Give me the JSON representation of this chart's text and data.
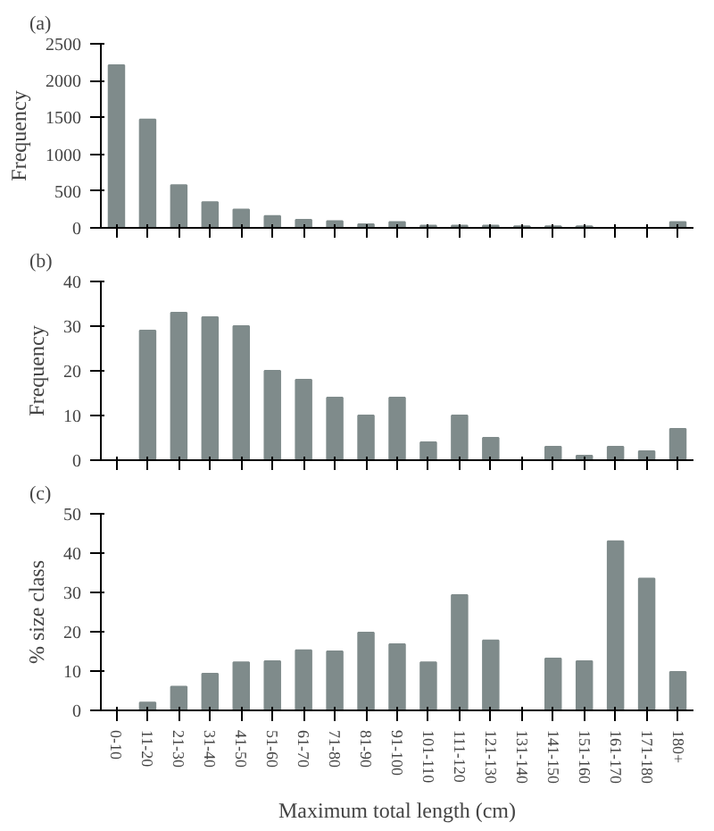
{
  "chart_data": [
    {
      "type": "bar",
      "title": "(a)",
      "ylabel": "Frequency",
      "categories": [
        null,
        null,
        null,
        null,
        null,
        null,
        null,
        null,
        null,
        null,
        null,
        null,
        null,
        null,
        null,
        null,
        null,
        null,
        null
      ],
      "values": [
        2210,
        1470,
        580,
        350,
        250,
        160,
        110,
        90,
        50,
        80,
        30,
        30,
        30,
        20,
        20,
        20,
        0,
        0,
        80
      ],
      "color": "#7f8b8b",
      "ylim": [
        0,
        2500
      ],
      "yticks": [
        0,
        500,
        1000,
        1500,
        2000,
        2500
      ],
      "tick_labels": "y"
    },
    {
      "type": "bar",
      "title": "(b)",
      "ylabel": "Frequency",
      "categories": [
        null,
        null,
        null,
        null,
        null,
        null,
        null,
        null,
        null,
        null,
        null,
        null,
        null,
        null,
        null,
        null,
        null,
        null,
        null
      ],
      "values": [
        0,
        29,
        33,
        32,
        30,
        20,
        18,
        14,
        10,
        14,
        4,
        10,
        5,
        0,
        3,
        1,
        3,
        2,
        7
      ],
      "color": "#7f8b8b",
      "ylim": [
        0,
        40
      ],
      "yticks": [
        0,
        10,
        20,
        30,
        40
      ],
      "tick_labels": "y"
    },
    {
      "type": "bar",
      "title": "(c)",
      "ylabel": "% size class",
      "xlabel": "Maximum total length (cm)",
      "categories": [
        "0-10",
        "11-20",
        "21-30",
        "31-40",
        "41-50",
        "51-60",
        "61-70",
        "71-80",
        "81-90",
        "91-100",
        "101-110",
        "111-120",
        "121-130",
        "131-140",
        "141-150",
        "151-160",
        "161-170",
        "171-180",
        "180+"
      ],
      "values": [
        0,
        2,
        6,
        9.3,
        12.2,
        12.5,
        15.3,
        15,
        19.8,
        16.8,
        12.2,
        29.3,
        17.8,
        0,
        13.2,
        12.5,
        43,
        33.5,
        9.8
      ],
      "color": "#7f8b8b",
      "ylim": [
        0,
        50
      ],
      "yticks": [
        0,
        10,
        20,
        30,
        40,
        50
      ]
    }
  ]
}
